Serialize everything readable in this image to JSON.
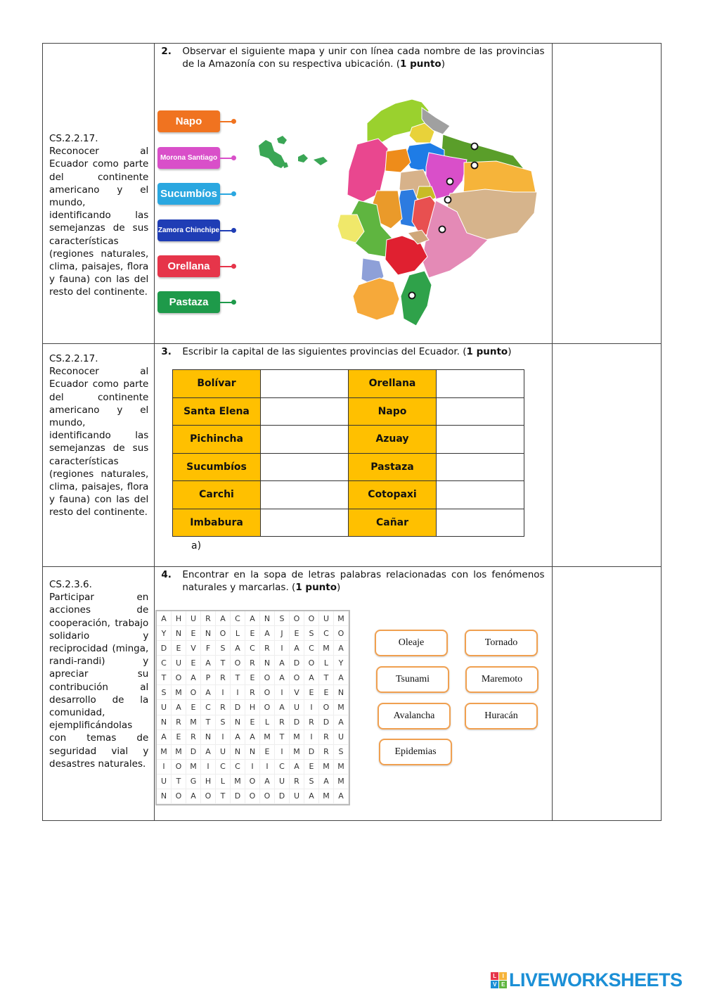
{
  "rows": [
    {
      "objective_code": "CS.2.2.17.",
      "objective_text": "Reconocer al Ecuador como parte del continente americano y el mundo, identificando las semejanzas de sus características (regiones naturales, clima, paisajes, flora y fauna) con las del resto del continente.",
      "question_number": "2.",
      "question_text": "Observar el siguiente mapa y unir con línea cada nombre de las provincias de la Amazonía con su respectiva ubicación. (",
      "question_points": "1 punto",
      "question_close": ")",
      "labels": [
        {
          "text": "Napo",
          "color": "#F07320"
        },
        {
          "text": "Morona Santiago",
          "color": "#D94FC9"
        },
        {
          "text": "Sucumbíos",
          "color": "#2AA7E0"
        },
        {
          "text": "Zamora Chinchipe",
          "color": "#1F3DB5"
        },
        {
          "text": "Orellana",
          "color": "#E6354A"
        },
        {
          "text": "Pastaza",
          "color": "#1E9A4A"
        }
      ]
    },
    {
      "objective_code": "CS.2.2.17.",
      "objective_text": "Reconocer al Ecuador como parte del continente americano y el mundo, identificando las semejanzas de sus características (regiones naturales, clima, paisajes, flora y fauna) con las del resto del continente.",
      "question_number": "3.",
      "question_text": "Escribir la capital de las siguientes provincias del Ecuador. (",
      "question_points": "1 punto",
      "question_close": ")",
      "provinces": [
        [
          "Bolívar",
          "Orellana"
        ],
        [
          "Santa Elena",
          "Napo"
        ],
        [
          "Pichincha",
          "Azuay"
        ],
        [
          "Sucumbíos",
          "Pastaza"
        ],
        [
          "Carchi",
          "Cotopaxi"
        ],
        [
          "Imbabura",
          "Cañar"
        ]
      ],
      "answer_label": "a)"
    },
    {
      "objective_code": "CS.2.3.6.",
      "objective_text": "Participar en acciones de cooperación, trabajo solidario y reciprocidad (minga, randi-randi) y apreciar su contribución al desarrollo de la comunidad, ejemplificándolas con temas de seguridad vial y desastres naturales.",
      "question_number": "4.",
      "question_text": "Encontrar en la sopa de letras palabras relacionadas con los fenómenos naturales y marcarlas. (",
      "question_points": "1 punto",
      "question_close": ")",
      "grid": [
        "AHURACANSOOUM",
        "YNENOLEAJESCO",
        "DEVFSACRIACMA",
        "CUEATORNADOLY",
        "TOAPRTEOAOATA",
        "SMOAIIROIVEEN",
        "UAECRDHOAUIOM",
        "NRMTSNELRDRDA",
        "AERNIAAMTMIRU",
        "MMDAUNNEIMDRS",
        "IOMICCIICAEMM",
        "UTGHLMOAURSAM",
        "NOAOTDOODUAMA"
      ],
      "words": [
        "Oleaje",
        "Tornado",
        "Tsunami",
        "Maremoto",
        "Avalancha",
        "Huracán",
        "Epidemias"
      ]
    }
  ],
  "logo": {
    "text": "LIVEWORKSHEETS",
    "color": "#1B8FD6"
  }
}
